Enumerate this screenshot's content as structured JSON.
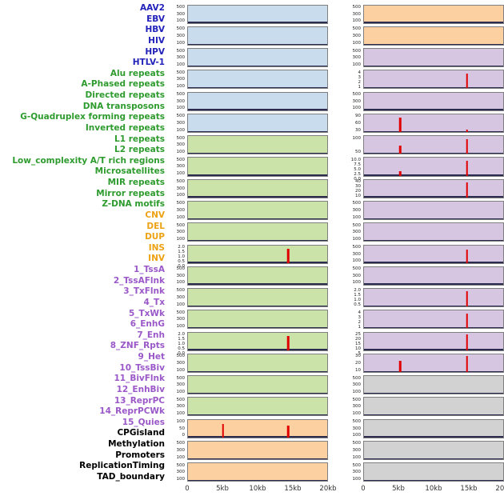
{
  "chart_data": {
    "type": "area",
    "title": "",
    "xlabel": "",
    "ylabel": "",
    "x_range_label": "0 to 20kb",
    "x_ticks": [
      "0",
      "5kb",
      "10kb",
      "15kb",
      "20kb"
    ],
    "colors": {
      "labels": {
        "virus": "#2222bb",
        "repeat": "#2e9b2e",
        "sv": "#eda213",
        "chromatin": "#9a58c8",
        "other": "#000000"
      },
      "panels": {
        "blue": "#c8dcee",
        "green": "#cbe3a8",
        "orange": "#fdd0a2",
        "purple": "#d6c6e2",
        "gray": "#d2d2d2"
      },
      "spike": "#e10000",
      "baseline": "#2b2b4f",
      "panel_border": "#7f7f7f"
    },
    "rows": [
      {
        "label": "AAV2",
        "group": "virus"
      },
      {
        "label": "EBV",
        "group": "virus"
      },
      {
        "label": "HBV",
        "group": "virus"
      },
      {
        "label": "HIV",
        "group": "virus"
      },
      {
        "label": "HPV",
        "group": "virus"
      },
      {
        "label": "HTLV-1",
        "group": "virus"
      },
      {
        "label": "Alu repeats",
        "group": "repeat"
      },
      {
        "label": "A-Phased repeats",
        "group": "repeat"
      },
      {
        "label": "Directed repeats",
        "group": "repeat"
      },
      {
        "label": "DNA transposons",
        "group": "repeat"
      },
      {
        "label": "G-Quadruplex forming repeats",
        "group": "repeat"
      },
      {
        "label": "Inverted repeats",
        "group": "repeat"
      },
      {
        "label": "L1 repeats",
        "group": "repeat"
      },
      {
        "label": "L2 repeats",
        "group": "repeat"
      },
      {
        "label": "Low_complexity A/T rich regions",
        "group": "repeat"
      },
      {
        "label": "Microsatellites",
        "group": "repeat"
      },
      {
        "label": "MIR repeats",
        "group": "repeat"
      },
      {
        "label": "Mirror repeats",
        "group": "repeat"
      },
      {
        "label": "Z-DNA motifs",
        "group": "repeat"
      },
      {
        "label": "CNV",
        "group": "sv"
      },
      {
        "label": "DEL",
        "group": "sv"
      },
      {
        "label": "DUP",
        "group": "sv"
      },
      {
        "label": "INS",
        "group": "sv"
      },
      {
        "label": "INV",
        "group": "sv"
      },
      {
        "label": "1_TssA",
        "group": "chromatin"
      },
      {
        "label": "2_TssAFlnk",
        "group": "chromatin"
      },
      {
        "label": "3_TxFlnk",
        "group": "chromatin"
      },
      {
        "label": "4_Tx",
        "group": "chromatin"
      },
      {
        "label": "5_TxWk",
        "group": "chromatin"
      },
      {
        "label": "6_EnhG",
        "group": "chromatin"
      },
      {
        "label": "7_Enh",
        "group": "chromatin"
      },
      {
        "label": "8_ZNF_Rpts",
        "group": "chromatin"
      },
      {
        "label": "9_Het",
        "group": "chromatin"
      },
      {
        "label": "10_TssBiv",
        "group": "chromatin"
      },
      {
        "label": "11_BivFlnk",
        "group": "chromatin"
      },
      {
        "label": "12_EnhBiv",
        "group": "chromatin"
      },
      {
        "label": "13_ReprPC",
        "group": "chromatin"
      },
      {
        "label": "14_ReprPCWk",
        "group": "chromatin"
      },
      {
        "label": "15_Quies",
        "group": "chromatin"
      },
      {
        "label": "CPGisland",
        "group": "other"
      },
      {
        "label": "Methylation",
        "group": "other"
      },
      {
        "label": "Promoters",
        "group": "other"
      },
      {
        "label": "ReplicationTiming",
        "group": "other"
      },
      {
        "label": "TAD_boundary",
        "group": "other"
      }
    ],
    "columns": [
      {
        "name": "left",
        "panels": [
          {
            "rows": [
              "AAV2",
              "EBV"
            ],
            "bg": "blue",
            "yticks": [
              "500",
              "300",
              "100"
            ],
            "spikes": []
          },
          {
            "rows": [
              "HBV",
              "HIV"
            ],
            "bg": "blue",
            "yticks": [
              "500",
              "300",
              "100"
            ],
            "spikes": []
          },
          {
            "rows": [
              "HPV",
              "HTLV-1"
            ],
            "bg": "blue",
            "yticks": [
              "500",
              "300",
              "100"
            ],
            "spikes": []
          },
          {
            "rows": [
              "Alu repeats",
              "A-Phased repeats"
            ],
            "bg": "blue",
            "yticks": [
              "500",
              "300",
              "100"
            ],
            "spikes": []
          },
          {
            "rows": [
              "Directed repeats",
              "DNA transposons"
            ],
            "bg": "blue",
            "yticks": [
              "500",
              "300",
              "100"
            ],
            "spikes": []
          },
          {
            "rows": [
              "G-Quadruplex forming repeats",
              "Inverted repeats"
            ],
            "bg": "blue",
            "yticks": [
              "500",
              "300",
              "100"
            ],
            "spikes": []
          },
          {
            "rows": [
              "L1 repeats",
              "L2 repeats"
            ],
            "bg": "green",
            "yticks": [
              "500",
              "300",
              "100"
            ],
            "spikes": []
          },
          {
            "rows": [
              "Low_complexity A/T rich regions",
              "Microsatellites"
            ],
            "bg": "green",
            "yticks": [
              "500",
              "300",
              "100"
            ],
            "spikes": []
          },
          {
            "rows": [
              "MIR repeats",
              "Mirror repeats"
            ],
            "bg": "green",
            "yticks": [
              "500",
              "300",
              "100"
            ],
            "spikes": []
          },
          {
            "rows": [
              "Z-DNA motifs",
              "CNV"
            ],
            "bg": "green",
            "yticks": [
              "500",
              "300",
              "100"
            ],
            "spikes": []
          },
          {
            "rows": [
              "DEL",
              "DUP"
            ],
            "bg": "green",
            "yticks": [
              "500",
              "300",
              "100"
            ],
            "spikes": []
          },
          {
            "rows": [
              "INS",
              "INV"
            ],
            "bg": "green",
            "yticks": [
              "2.0",
              "1.5",
              "1.0",
              "0.5",
              "0.0"
            ],
            "spikes": [
              {
                "x": 0.72,
                "h": 0.8
              }
            ]
          },
          {
            "rows": [
              "1_TssA",
              "2_TssAFlnk"
            ],
            "bg": "green",
            "yticks": [
              "500",
              "300",
              "100"
            ],
            "spikes": []
          },
          {
            "rows": [
              "3_TxFlnk",
              "4_Tx"
            ],
            "bg": "green",
            "yticks": [
              "500",
              "300",
              "100"
            ],
            "spikes": []
          },
          {
            "rows": [
              "5_TxWk",
              "6_EnhG"
            ],
            "bg": "green",
            "yticks": [
              "500",
              "300",
              "100"
            ],
            "spikes": []
          },
          {
            "rows": [
              "7_Enh",
              "8_ZNF_Rpts"
            ],
            "bg": "green",
            "yticks": [
              "2.0",
              "1.5",
              "1.0",
              "0.5",
              "0.0"
            ],
            "spikes": [
              {
                "x": 0.72,
                "h": 0.8
              }
            ]
          },
          {
            "rows": [
              "9_Het",
              "10_TssBiv"
            ],
            "bg": "green",
            "yticks": [
              "500",
              "300",
              "100"
            ],
            "spikes": []
          },
          {
            "rows": [
              "11_BivFlnk",
              "12_EnhBiv"
            ],
            "bg": "green",
            "yticks": [
              "500",
              "300",
              "100"
            ],
            "spikes": []
          },
          {
            "rows": [
              "13_ReprPC",
              "14_ReprPCWk"
            ],
            "bg": "green",
            "yticks": [
              "500",
              "300",
              "100"
            ],
            "spikes": []
          },
          {
            "rows": [
              "15_Quies",
              "CPGisland"
            ],
            "bg": "orange",
            "yticks": [
              "100",
              "50",
              "0"
            ],
            "spikes": [
              {
                "x": 0.25,
                "h": 0.75
              },
              {
                "x": 0.72,
                "h": 0.65
              }
            ]
          },
          {
            "rows": [
              "Methylation",
              "Promoters"
            ],
            "bg": "orange",
            "yticks": [
              "500",
              "300",
              "100"
            ],
            "spikes": []
          },
          {
            "rows": [
              "ReplicationTiming",
              "TAD_boundary"
            ],
            "bg": "orange",
            "yticks": [
              "500",
              "300",
              "100"
            ],
            "spikes": []
          }
        ]
      },
      {
        "name": "right",
        "panels": [
          {
            "rows": [
              "AAV2",
              "EBV"
            ],
            "bg": "orange",
            "yticks": [
              "500",
              "300",
              "100"
            ],
            "spikes": []
          },
          {
            "rows": [
              "HBV",
              "HIV"
            ],
            "bg": "orange",
            "yticks": [
              "500",
              "300",
              "100"
            ],
            "spikes": []
          },
          {
            "rows": [
              "HPV",
              "HTLV-1"
            ],
            "bg": "purple",
            "yticks": [
              "500",
              "300",
              "100"
            ],
            "spikes": []
          },
          {
            "rows": [
              "Alu repeats",
              "A-Phased repeats"
            ],
            "bg": "purple",
            "yticks": [
              "4",
              "3",
              "2",
              "1"
            ],
            "spikes": [
              {
                "x": 0.74,
                "h": 0.85
              }
            ]
          },
          {
            "rows": [
              "Directed repeats",
              "DNA transposons"
            ],
            "bg": "purple",
            "yticks": [
              "500",
              "300",
              "100"
            ],
            "spikes": []
          },
          {
            "rows": [
              "G-Quadruplex forming repeats",
              "Inverted repeats"
            ],
            "bg": "purple",
            "yticks": [
              "90",
              "60",
              "30"
            ],
            "spikes": [
              {
                "x": 0.26,
                "h": 0.8
              },
              {
                "x": 0.74,
                "h": 0.12
              }
            ]
          },
          {
            "rows": [
              "L1 repeats",
              "L2 repeats"
            ],
            "bg": "purple",
            "yticks": [
              "100",
              "50"
            ],
            "spikes": [
              {
                "x": 0.26,
                "h": 0.45
              },
              {
                "x": 0.74,
                "h": 0.85
              }
            ]
          },
          {
            "rows": [
              "Low_complexity A/T rich regions",
              "Microsatellites"
            ],
            "bg": "purple",
            "yticks": [
              "10.0",
              "7.5",
              "5.0",
              "2.5",
              "0.0"
            ],
            "spikes": [
              {
                "x": 0.26,
                "h": 0.25
              },
              {
                "x": 0.74,
                "h": 0.85
              }
            ]
          },
          {
            "rows": [
              "MIR repeats",
              "Mirror repeats"
            ],
            "bg": "purple",
            "yticks": [
              "40",
              "30",
              "20",
              "10"
            ],
            "spikes": [
              {
                "x": 0.74,
                "h": 0.85
              }
            ]
          },
          {
            "rows": [
              "Z-DNA motifs",
              "CNV"
            ],
            "bg": "purple",
            "yticks": [
              "500",
              "300",
              "100"
            ],
            "spikes": []
          },
          {
            "rows": [
              "DEL",
              "DUP"
            ],
            "bg": "purple",
            "yticks": [
              "500",
              "300",
              "100"
            ],
            "spikes": []
          },
          {
            "rows": [
              "INS",
              "INV"
            ],
            "bg": "purple",
            "yticks": [
              "500",
              "300",
              "100"
            ],
            "spikes": [
              {
                "x": 0.74,
                "h": 0.75
              }
            ]
          },
          {
            "rows": [
              "1_TssA",
              "2_TssAFlnk"
            ],
            "bg": "purple",
            "yticks": [
              "500",
              "300",
              "100"
            ],
            "spikes": []
          },
          {
            "rows": [
              "3_TxFlnk",
              "4_Tx"
            ],
            "bg": "purple",
            "yticks": [
              "2.0",
              "1.5",
              "1.0",
              "0.5"
            ],
            "spikes": [
              {
                "x": 0.74,
                "h": 0.85
              }
            ]
          },
          {
            "rows": [
              "5_TxWk",
              "6_EnhG"
            ],
            "bg": "purple",
            "yticks": [
              "4",
              "3",
              "2",
              "1"
            ],
            "spikes": [
              {
                "x": 0.74,
                "h": 0.85
              }
            ]
          },
          {
            "rows": [
              "7_Enh",
              "8_ZNF_Rpts"
            ],
            "bg": "purple",
            "yticks": [
              "25",
              "20",
              "15",
              "10",
              "5"
            ],
            "spikes": [
              {
                "x": 0.74,
                "h": 0.9
              }
            ]
          },
          {
            "rows": [
              "9_Het",
              "10_TssBiv"
            ],
            "bg": "purple",
            "yticks": [
              "30",
              "20",
              "10"
            ],
            "spikes": [
              {
                "x": 0.26,
                "h": 0.65
              },
              {
                "x": 0.74,
                "h": 0.9
              }
            ]
          },
          {
            "rows": [
              "11_BivFlnk",
              "12_EnhBiv"
            ],
            "bg": "gray",
            "yticks": [
              "500",
              "300",
              "100"
            ],
            "spikes": []
          },
          {
            "rows": [
              "13_ReprPC",
              "14_ReprPCWk"
            ],
            "bg": "gray",
            "yticks": [
              "500",
              "300",
              "100"
            ],
            "spikes": []
          },
          {
            "rows": [
              "15_Quies",
              "CPGisland"
            ],
            "bg": "gray",
            "yticks": [
              "500",
              "300",
              "100"
            ],
            "spikes": []
          },
          {
            "rows": [
              "Methylation",
              "Promoters"
            ],
            "bg": "gray",
            "yticks": [
              "500",
              "300",
              "100"
            ],
            "spikes": []
          },
          {
            "rows": [
              "ReplicationTiming",
              "TAD_boundary"
            ],
            "bg": "gray",
            "yticks": [
              "500",
              "300",
              "100"
            ],
            "spikes": []
          }
        ]
      }
    ],
    "legend_position": "none",
    "grid": false
  }
}
